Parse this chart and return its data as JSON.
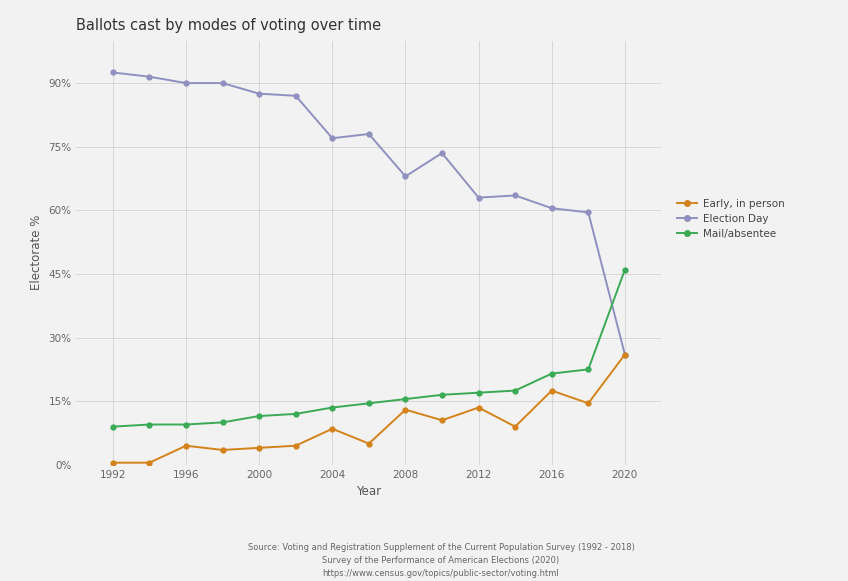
{
  "title": "Ballots cast by modes of voting over time",
  "xlabel": "Year",
  "ylabel": "Electorate %",
  "source_text": "Source: Voting and Registration Supplement of the Current Population Survey (1992 - 2018)\nSurvey of the Performance of American Elections (2020)\nhttps://www.census.gov/topics/public-sector/voting.html",
  "years": [
    1992,
    1994,
    1996,
    1998,
    2000,
    2002,
    2004,
    2006,
    2008,
    2010,
    2012,
    2014,
    2016,
    2018,
    2020
  ],
  "election_day": [
    92.5,
    91.5,
    90.0,
    90.0,
    87.5,
    87.0,
    77.0,
    78.0,
    68.0,
    73.5,
    63.0,
    63.5,
    60.5,
    59.5,
    26.0
  ],
  "early_in_person": [
    0.5,
    0.5,
    4.5,
    3.5,
    4.0,
    4.5,
    8.5,
    5.0,
    13.0,
    10.5,
    13.5,
    9.0,
    17.5,
    14.5,
    26.0
  ],
  "mail_absentee": [
    9.0,
    9.5,
    9.5,
    10.0,
    11.5,
    12.0,
    13.5,
    14.5,
    15.5,
    16.5,
    17.0,
    17.5,
    21.5,
    22.5,
    46.0
  ],
  "election_day_color": "#9090c0",
  "early_color": "#d4821a",
  "mail_color": "#3aaa55",
  "bg_color": "#f2f2f2",
  "grid_color": "#cccccc",
  "ylim": [
    0,
    100
  ],
  "yticks": [
    0,
    15,
    30,
    45,
    60,
    75,
    90
  ],
  "ytick_labels": [
    "0%",
    "15%",
    "30%",
    "45%",
    "60%",
    "75%",
    "90%"
  ],
  "xticks": [
    1992,
    1996,
    2000,
    2004,
    2008,
    2012,
    2016,
    2020
  ],
  "title_fontsize": 10.5,
  "axis_label_fontsize": 8.5,
  "tick_fontsize": 7.5,
  "legend_fontsize": 7.5,
  "source_fontsize": 6.0,
  "linewidth": 1.4,
  "markersize": 3.5
}
